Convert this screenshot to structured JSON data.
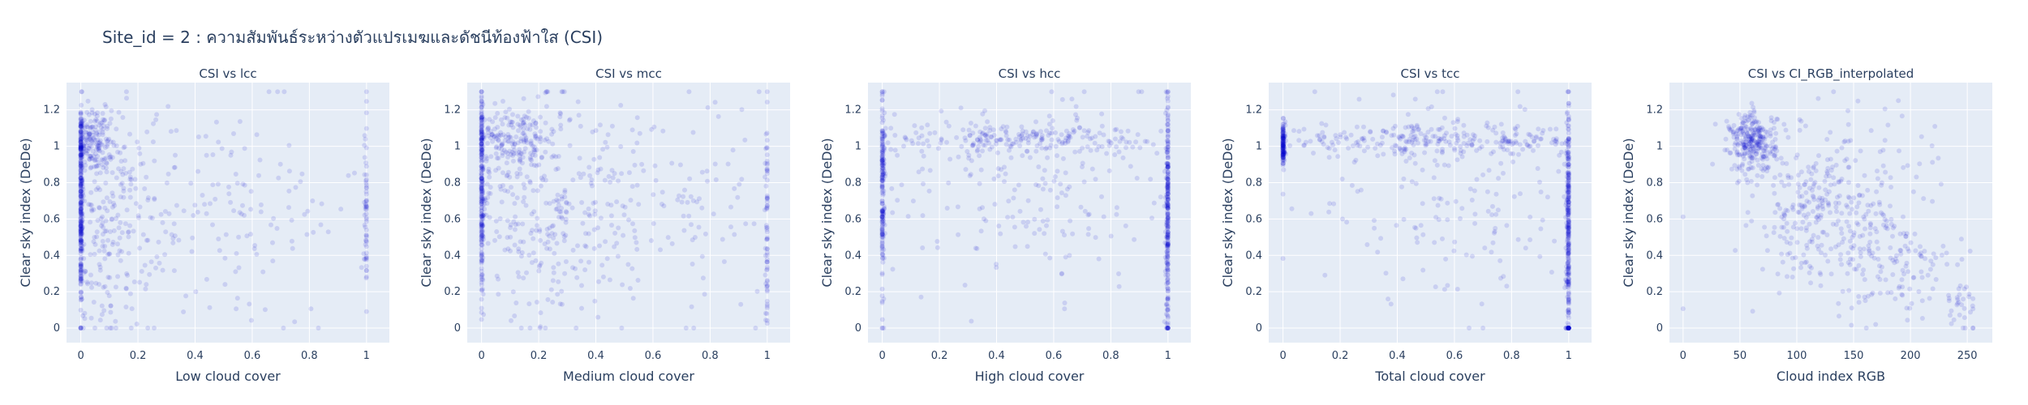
{
  "title": "Site_id = 2 : ความสัมพันธ์ระหว่างตัวแปรเมฆและดัชนีท้องฟ้าใส (CSI)",
  "colors": {
    "plot_bg": "#e5ecf6",
    "grid": "#ffffff",
    "marker": "#0000cc",
    "text": "#2a3f5f"
  },
  "chart_data": [
    {
      "type": "scatter",
      "title": "CSI vs lcc",
      "xlabel": "Low cloud cover",
      "ylabel": "Clear sky index (DeDe)",
      "xlim": [
        -0.05,
        1.08
      ],
      "ylim": [
        -0.08,
        1.35
      ],
      "xticks": [
        0,
        0.2,
        0.4,
        0.6,
        0.8,
        1
      ],
      "xtick_labels": [
        "0",
        "0.2",
        "0.4",
        "0.6",
        "0.8",
        "1"
      ],
      "yticks": [
        0,
        0.2,
        0.4,
        0.6,
        0.8,
        1,
        1.2
      ],
      "ytick_labels": [
        "0",
        "0.2",
        "0.4",
        "0.6",
        "0.8",
        "1",
        "1.2"
      ],
      "clusters": [
        {
          "x": 0.0,
          "y": 0.68,
          "sx": 0.004,
          "sy": 0.3,
          "n": 240
        },
        {
          "x": 0.03,
          "y": 1.02,
          "sx": 0.04,
          "sy": 0.09,
          "n": 200
        },
        {
          "x": 0.09,
          "y": 0.55,
          "sx": 0.08,
          "sy": 0.3,
          "n": 240
        },
        {
          "x": 0.45,
          "y": 0.62,
          "sx": 0.28,
          "sy": 0.32,
          "n": 170
        },
        {
          "x": 1.0,
          "y": 0.7,
          "sx": 0.004,
          "sy": 0.3,
          "n": 60
        }
      ]
    },
    {
      "type": "scatter",
      "title": "CSI vs mcc",
      "xlabel": "Medium cloud cover",
      "ylabel": "Clear sky index (DeDe)",
      "xlim": [
        -0.05,
        1.08
      ],
      "ylim": [
        -0.08,
        1.35
      ],
      "xticks": [
        0,
        0.2,
        0.4,
        0.6,
        0.8,
        1
      ],
      "xtick_labels": [
        "0",
        "0.2",
        "0.4",
        "0.6",
        "0.8",
        "1"
      ],
      "yticks": [
        0,
        0.2,
        0.4,
        0.6,
        0.8,
        1,
        1.2
      ],
      "ytick_labels": [
        "0",
        "0.2",
        "0.4",
        "0.6",
        "0.8",
        "1",
        "1.2"
      ],
      "clusters": [
        {
          "x": 0.0,
          "y": 0.75,
          "sx": 0.004,
          "sy": 0.3,
          "n": 200
        },
        {
          "x": 0.1,
          "y": 1.04,
          "sx": 0.09,
          "sy": 0.09,
          "n": 220
        },
        {
          "x": 0.2,
          "y": 0.6,
          "sx": 0.14,
          "sy": 0.3,
          "n": 220
        },
        {
          "x": 0.55,
          "y": 0.7,
          "sx": 0.28,
          "sy": 0.3,
          "n": 200
        },
        {
          "x": 1.0,
          "y": 0.55,
          "sx": 0.004,
          "sy": 0.3,
          "n": 60
        }
      ]
    },
    {
      "type": "scatter",
      "title": "CSI vs hcc",
      "xlabel": "High cloud cover",
      "ylabel": "Clear sky index (DeDe)",
      "xlim": [
        -0.05,
        1.08
      ],
      "ylim": [
        -0.08,
        1.35
      ],
      "xticks": [
        0,
        0.2,
        0.4,
        0.6,
        0.8,
        1
      ],
      "xtick_labels": [
        "0",
        "0.2",
        "0.4",
        "0.6",
        "0.8",
        "1"
      ],
      "yticks": [
        0,
        0.2,
        0.4,
        0.6,
        0.8,
        1,
        1.2
      ],
      "ytick_labels": [
        "0",
        "0.2",
        "0.4",
        "0.6",
        "0.8",
        "1",
        "1.2"
      ],
      "clusters": [
        {
          "x": 0.0,
          "y": 0.75,
          "sx": 0.004,
          "sy": 0.3,
          "n": 180
        },
        {
          "x": 0.5,
          "y": 1.04,
          "sx": 0.3,
          "sy": 0.04,
          "n": 220
        },
        {
          "x": 0.5,
          "y": 0.75,
          "sx": 0.3,
          "sy": 0.28,
          "n": 200
        },
        {
          "x": 1.0,
          "y": 0.6,
          "sx": 0.004,
          "sy": 0.33,
          "n": 260
        }
      ]
    },
    {
      "type": "scatter",
      "title": "CSI vs tcc",
      "xlabel": "Total cloud cover",
      "ylabel": "Clear sky index (DeDe)",
      "xlim": [
        -0.05,
        1.08
      ],
      "ylim": [
        -0.08,
        1.35
      ],
      "xticks": [
        0,
        0.2,
        0.4,
        0.6,
        0.8,
        1
      ],
      "xtick_labels": [
        "0",
        "0.2",
        "0.4",
        "0.6",
        "0.8",
        "1"
      ],
      "yticks": [
        0,
        0.2,
        0.4,
        0.6,
        0.8,
        1,
        1.2
      ],
      "ytick_labels": [
        "0",
        "0.2",
        "0.4",
        "0.6",
        "0.8",
        "1",
        "1.2"
      ],
      "clusters": [
        {
          "x": 0.0,
          "y": 1.0,
          "sx": 0.004,
          "sy": 0.06,
          "n": 120
        },
        {
          "x": 0.5,
          "y": 1.03,
          "sx": 0.3,
          "sy": 0.04,
          "n": 260
        },
        {
          "x": 0.6,
          "y": 0.7,
          "sx": 0.25,
          "sy": 0.28,
          "n": 160
        },
        {
          "x": 1.0,
          "y": 0.55,
          "sx": 0.004,
          "sy": 0.35,
          "n": 300
        }
      ]
    },
    {
      "type": "scatter",
      "title": "CSI vs CI_RGB_interpolated",
      "xlabel": "Cloud index RGB",
      "ylabel": "Clear sky index (DeDe)",
      "xlim": [
        -12,
        272
      ],
      "ylim": [
        -0.08,
        1.35
      ],
      "xticks": [
        0,
        50,
        100,
        150,
        200,
        250
      ],
      "xtick_labels": [
        "0",
        "50",
        "100",
        "150",
        "200",
        "250"
      ],
      "yticks": [
        0,
        0.2,
        0.4,
        0.6,
        0.8,
        1,
        1.2
      ],
      "ytick_labels": [
        "0",
        "0.2",
        "0.4",
        "0.6",
        "0.8",
        "1",
        "1.2"
      ],
      "clusters": [
        {
          "x": 62,
          "y": 1.02,
          "sx": 10,
          "sy": 0.08,
          "n": 280
        },
        {
          "x": 120,
          "y": 0.65,
          "sx": 28,
          "sy": 0.18,
          "n": 220
        },
        {
          "x": 185,
          "y": 0.35,
          "sx": 28,
          "sy": 0.15,
          "n": 120
        },
        {
          "x": 140,
          "y": 0.7,
          "sx": 55,
          "sy": 0.3,
          "n": 120
        },
        {
          "x": 245,
          "y": 0.12,
          "sx": 10,
          "sy": 0.06,
          "n": 30
        }
      ]
    }
  ]
}
